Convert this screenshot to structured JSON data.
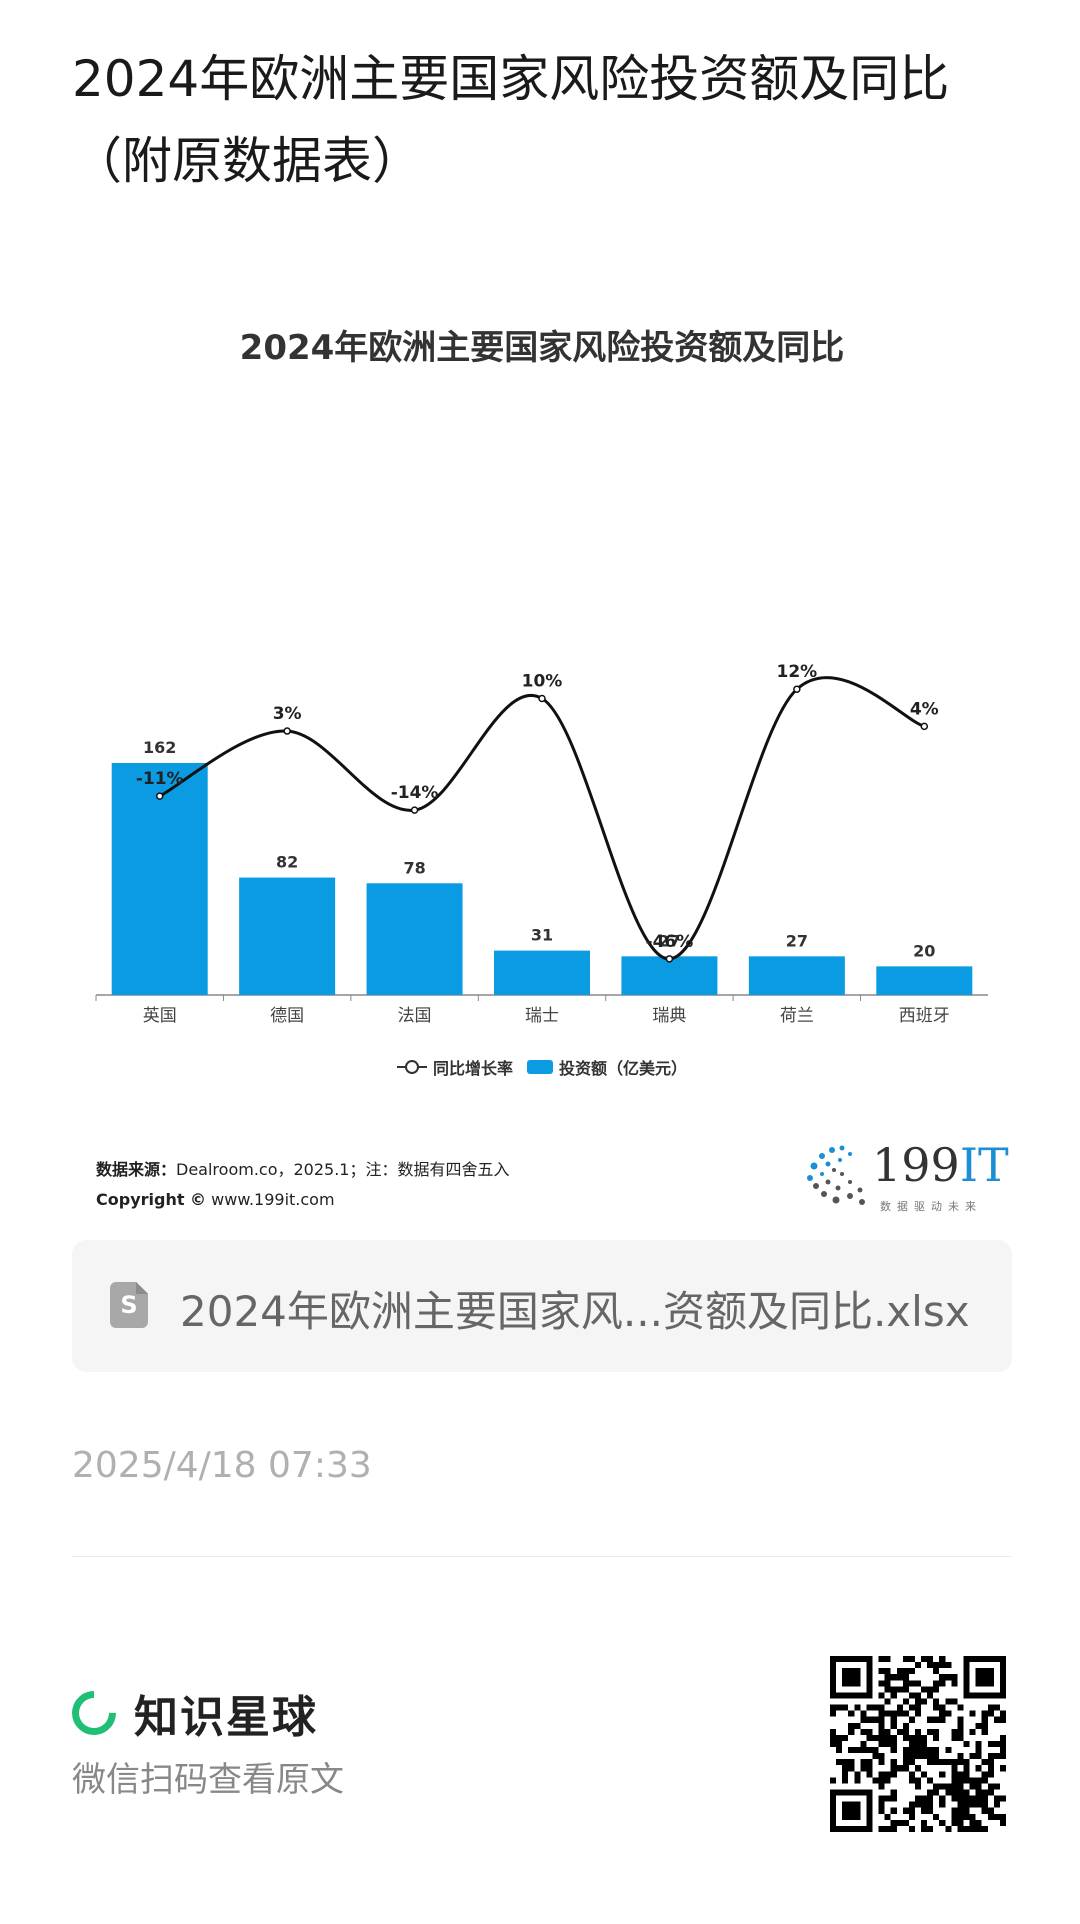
{
  "post": {
    "title": "2024年欧洲主要国家风险投资额及同比（附原数据表）",
    "date": "2025/4/18 07:33"
  },
  "file": {
    "icon": "spreadsheet-icon",
    "icon_letter": "S",
    "name": "2024年欧洲主要国家风...资额及同比.xlsx"
  },
  "footer": {
    "brand_icon": "zhishi-xingqiu-ring-icon",
    "brand_name": "知识星球",
    "scan_hint": "微信扫码查看原文"
  },
  "source": {
    "label": "数据来源：",
    "text": "Dealroom.co，2025.1；注：数据有四舍五入",
    "copyright_label": "Copyright ©",
    "copyright_site": "www.199it.com"
  },
  "logo": {
    "number": "199",
    "suffix": "IT",
    "tagline": "数据驱动未来"
  },
  "chart_data": {
    "type": "bar",
    "title": "2024年欧洲主要国家风险投资额及同比",
    "categories": [
      "英国",
      "德国",
      "法国",
      "瑞士",
      "瑞典",
      "荷兰",
      "西班牙"
    ],
    "series": [
      {
        "name": "投资额（亿美元）",
        "type": "bar",
        "values": [
          162,
          82,
          78,
          31,
          27,
          27,
          20
        ],
        "labels": [
          "162",
          "82",
          "78",
          "31",
          "27",
          "27",
          "20"
        ],
        "color": "#0a9be3"
      },
      {
        "name": "同比增长率",
        "type": "line",
        "values": [
          -11,
          3,
          -14,
          10,
          -46,
          12,
          4
        ],
        "labels": [
          "-11%",
          "3%",
          "-14%",
          "10%",
          "-46%",
          "12%",
          "4%"
        ],
        "color": "#111111",
        "smooth": true
      }
    ],
    "legend": "bottom",
    "grid": false
  }
}
